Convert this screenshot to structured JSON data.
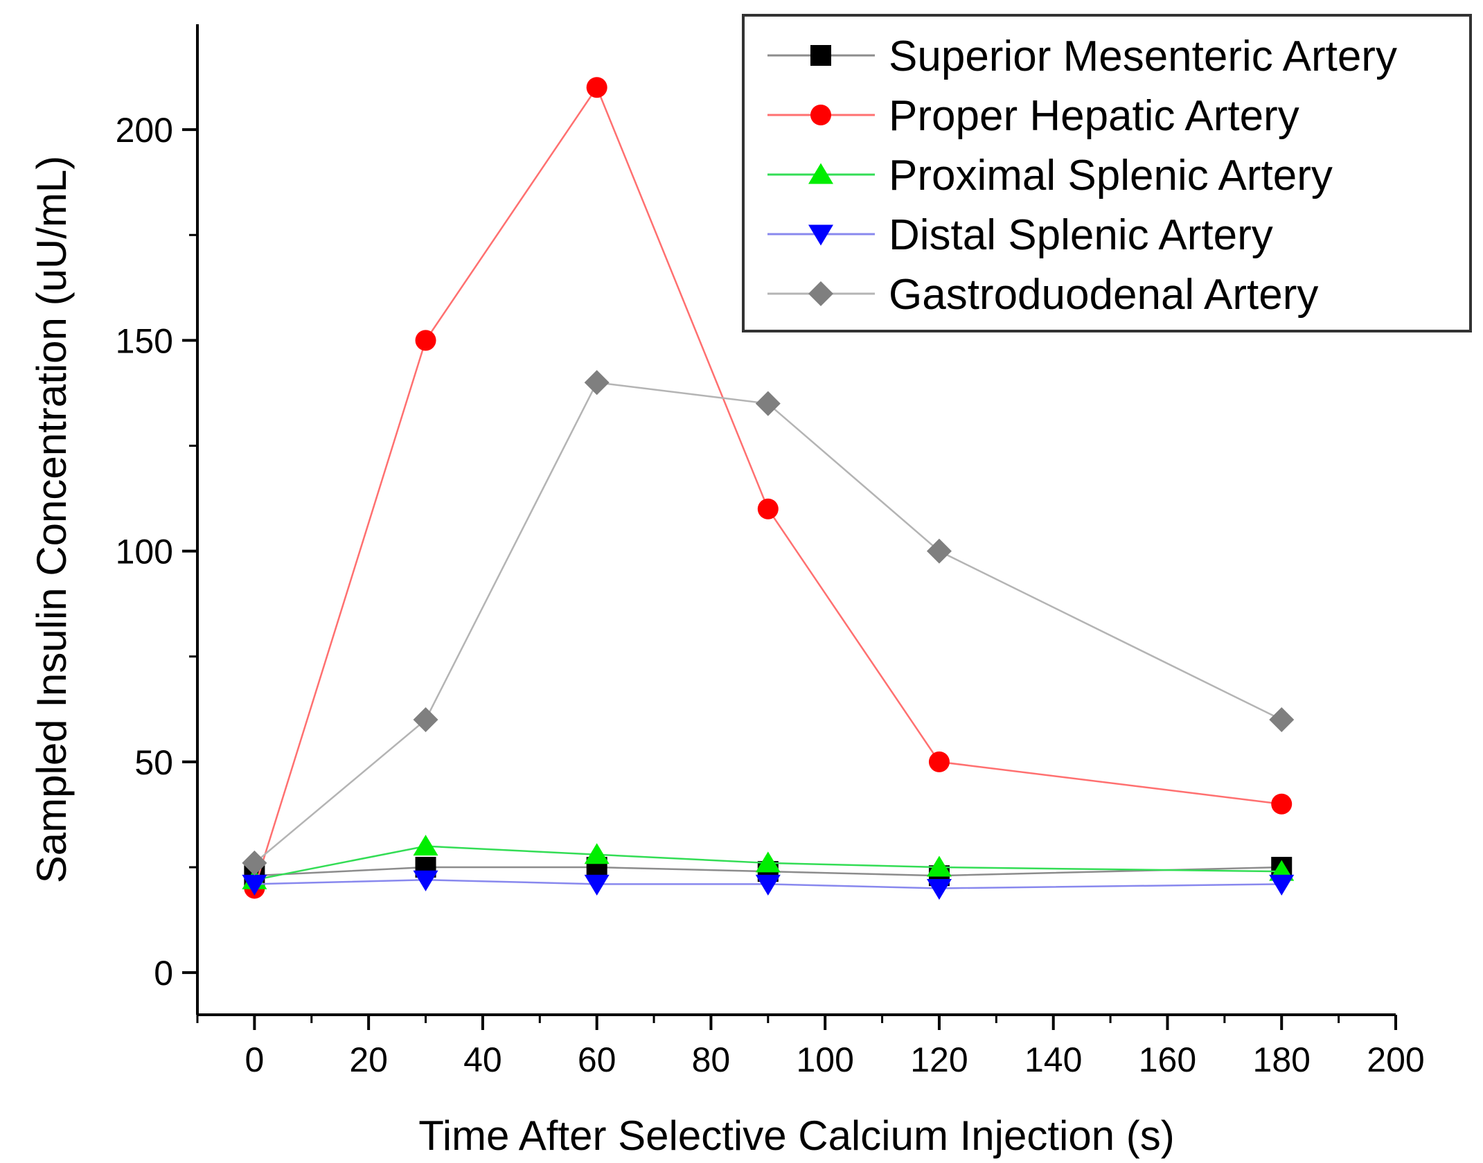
{
  "chart_data": {
    "type": "line",
    "title": "",
    "xlabel": "Time After Selective Calcium Injection (s)",
    "ylabel": "Sampled Insulin Concentration (uU/mL)",
    "xlim": [
      -10,
      200
    ],
    "ylim": [
      -10,
      225
    ],
    "xticks": [
      0,
      20,
      40,
      60,
      80,
      100,
      120,
      140,
      160,
      180,
      200
    ],
    "yticks": [
      0,
      50,
      100,
      150,
      200
    ],
    "x": [
      0,
      30,
      60,
      90,
      120,
      180
    ],
    "legend_position": "top-right",
    "series": [
      {
        "name": "Superior Mesenteric Artery",
        "marker": "square",
        "marker_color": "#000000",
        "line_color": "#8c8c8c",
        "values": [
          23,
          25,
          25,
          24,
          23,
          25
        ]
      },
      {
        "name": "Proper Hepatic Artery",
        "marker": "circle",
        "marker_color": "#ff0000",
        "line_color": "#ff7070",
        "values": [
          20,
          150,
          210,
          110,
          50,
          40
        ]
      },
      {
        "name": "Proximal Splenic Artery",
        "marker": "triangle-up",
        "marker_color": "#00ee00",
        "line_color": "#33dd55",
        "values": [
          22,
          30,
          28,
          26,
          25,
          24
        ]
      },
      {
        "name": "Distal Splenic Artery",
        "marker": "triangle-down",
        "marker_color": "#0000ff",
        "line_color": "#8888ee",
        "values": [
          21,
          22,
          21,
          21,
          20,
          21
        ]
      },
      {
        "name": "Gastroduodenal Artery",
        "marker": "diamond",
        "marker_color": "#7f7f7f",
        "line_color": "#b4b4b4",
        "values": [
          26,
          60,
          140,
          135,
          100,
          60
        ]
      }
    ]
  }
}
